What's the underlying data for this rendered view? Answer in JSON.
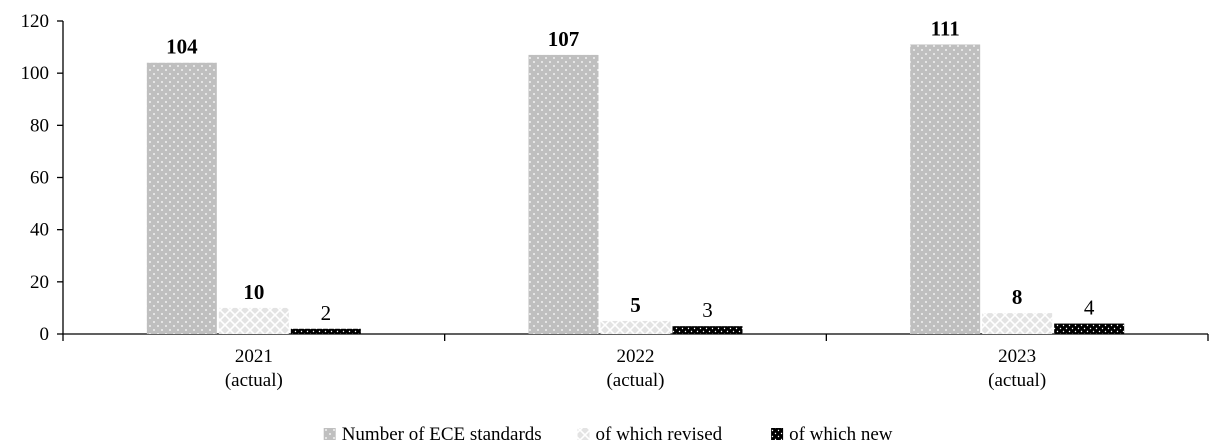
{
  "chart_data": {
    "type": "bar",
    "categories": [
      [
        "2021",
        "(actual)"
      ],
      [
        "2022",
        "(actual)"
      ],
      [
        "2023",
        "(actual)"
      ]
    ],
    "series": [
      {
        "name": "Number of ECE standards",
        "values": [
          104,
          107,
          111
        ],
        "labels": [
          "104",
          "107",
          "111"
        ],
        "label_bold": true,
        "color": "#bfbfbf",
        "pattern": "dots-light"
      },
      {
        "name": "of which revised",
        "values": [
          10,
          5,
          8
        ],
        "labels": [
          "10",
          "5",
          "8"
        ],
        "label_bold": true,
        "color": "#d9d9d9",
        "pattern": "crosshatch-light"
      },
      {
        "name": "of which new",
        "values": [
          2,
          3,
          4
        ],
        "labels": [
          "2",
          "3",
          "4"
        ],
        "label_bold": false,
        "color": "#000000",
        "pattern": "dots-dark"
      }
    ],
    "yticks": [
      "0",
      "20",
      "40",
      "60",
      "80",
      "100",
      "120"
    ],
    "ylim": [
      0,
      120
    ],
    "legend_position": "bottom",
    "grid": false
  }
}
